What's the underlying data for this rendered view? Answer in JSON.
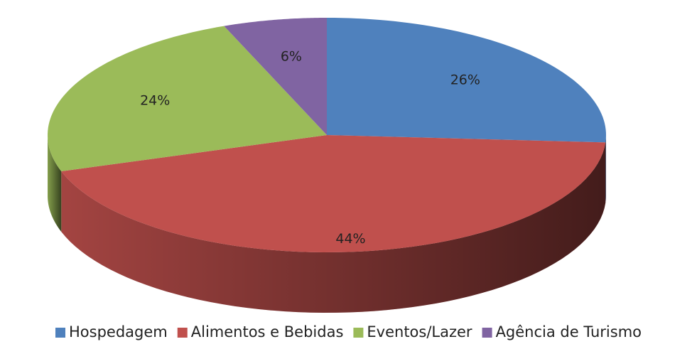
{
  "chart_data": {
    "type": "pie",
    "categories": [
      "Hospedagem",
      "Alimentos e Bebidas",
      "Eventos/Lazer",
      "Agência de Turismo"
    ],
    "values": [
      26,
      44,
      24,
      6
    ],
    "value_labels": [
      "26%",
      "44%",
      "24%",
      "6%"
    ],
    "colors": [
      "#4f81bd",
      "#c0504d",
      "#9bbb59",
      "#8064a2"
    ],
    "legend": "bottom"
  }
}
